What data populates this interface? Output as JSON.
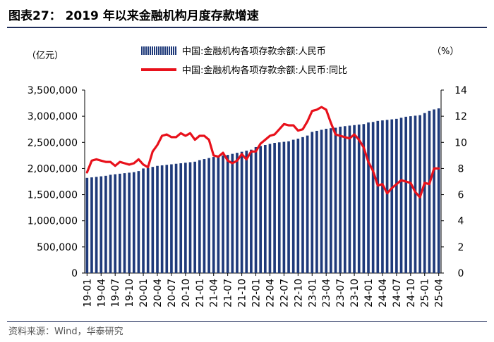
{
  "title": "图表27： 2019 年以来金融机构月度存款增速",
  "source": "资料来源：Wind，华泰研究",
  "chart_data": {
    "type": "bar+line",
    "left_unit": "（亿元）",
    "right_unit": "（%）",
    "series": [
      {
        "name": "中国:金融机构各项存款余额:人民币",
        "type": "bar",
        "axis": "left",
        "color": "#1f3a7a",
        "values": [
          1820000,
          1830000,
          1840000,
          1850000,
          1860000,
          1880000,
          1890000,
          1900000,
          1910000,
          1920000,
          1930000,
          1950000,
          2000000,
          2010000,
          2030000,
          2050000,
          2060000,
          2070000,
          2080000,
          2090000,
          2100000,
          2110000,
          2120000,
          2130000,
          2160000,
          2180000,
          2200000,
          2220000,
          2240000,
          2250000,
          2260000,
          2280000,
          2300000,
          2320000,
          2340000,
          2360000,
          2410000,
          2430000,
          2450000,
          2470000,
          2490000,
          2500000,
          2510000,
          2520000,
          2550000,
          2570000,
          2600000,
          2630000,
          2700000,
          2720000,
          2740000,
          2760000,
          2770000,
          2780000,
          2800000,
          2810000,
          2820000,
          2830000,
          2840000,
          2850000,
          2880000,
          2890000,
          2910000,
          2920000,
          2930000,
          2940000,
          2950000,
          2970000,
          2990000,
          3000000,
          3010000,
          3020000,
          3060000,
          3100000,
          3130000,
          3150000
        ]
      },
      {
        "name": "中国:金融机构各项存款余额:人民币:同比",
        "type": "line",
        "axis": "right",
        "color": "#e8111b",
        "values": [
          7.7,
          8.6,
          8.7,
          8.6,
          8.5,
          8.5,
          8.2,
          8.5,
          8.4,
          8.3,
          8.4,
          8.7,
          8.3,
          8.1,
          9.3,
          9.8,
          10.5,
          10.6,
          10.4,
          10.4,
          10.7,
          10.5,
          10.7,
          10.2,
          10.5,
          10.5,
          10.2,
          9.0,
          8.9,
          9.2,
          8.6,
          8.4,
          8.6,
          9.1,
          8.7,
          9.3,
          9.3,
          9.9,
          10.2,
          10.5,
          10.6,
          11.0,
          11.4,
          11.3,
          11.3,
          10.9,
          11.0,
          11.6,
          12.4,
          12.5,
          12.7,
          12.5,
          11.5,
          10.6,
          10.5,
          10.4,
          10.3,
          10.6,
          10.2,
          9.6,
          8.5,
          7.8,
          6.7,
          6.8,
          6.1,
          6.5,
          6.8,
          7.1,
          7.0,
          6.9,
          6.2,
          5.8,
          6.9,
          6.8,
          8.0,
          8.0
        ]
      }
    ],
    "x_tick_labels": [
      "19-01",
      "19-04",
      "19-07",
      "19-10",
      "20-01",
      "20-04",
      "20-07",
      "20-10",
      "21-01",
      "21-04",
      "21-07",
      "21-10",
      "22-01",
      "22-04",
      "22-07",
      "22-10",
      "23-01",
      "23-04",
      "23-07",
      "23-10",
      "24-01",
      "24-04",
      "24-07",
      "24-10",
      "25-01",
      "25-04"
    ],
    "y_left_ticks": [
      "0",
      "500,000",
      "1,000,000",
      "1,500,000",
      "2,000,000",
      "2,500,000",
      "3,000,000",
      "3,500,000"
    ],
    "y_right_ticks": [
      "0",
      "2",
      "4",
      "6",
      "8",
      "10",
      "12",
      "14"
    ],
    "y_left_range": [
      0,
      3500000
    ],
    "y_right_range": [
      0,
      14
    ],
    "legend_position": "top"
  }
}
